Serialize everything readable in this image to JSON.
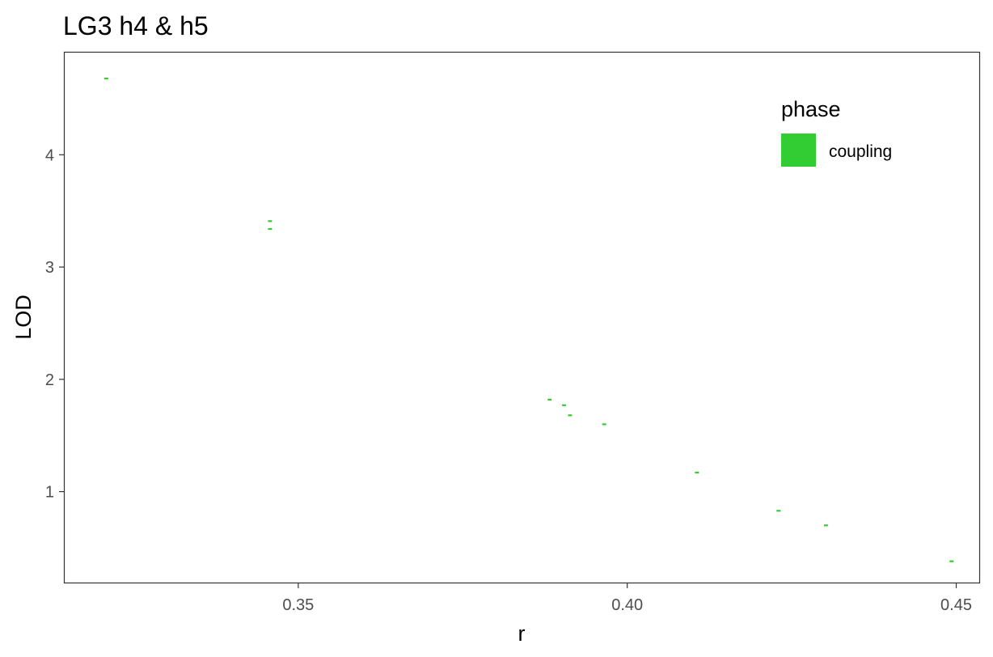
{
  "chart_data": {
    "type": "scatter",
    "title": "LG3 h4 & h5",
    "xlabel": "r",
    "ylabel": "LOD",
    "xlim": [
      0.3145,
      0.4535
    ],
    "ylim": [
      0.19,
      4.91
    ],
    "x_ticks": [
      {
        "value": 0.35,
        "label": "0.35"
      },
      {
        "value": 0.4,
        "label": "0.40"
      },
      {
        "value": 0.45,
        "label": "0.45"
      }
    ],
    "y_ticks": [
      {
        "value": 1,
        "label": "1"
      },
      {
        "value": 2,
        "label": "2"
      },
      {
        "value": 3,
        "label": "3"
      },
      {
        "value": 4,
        "label": "4"
      }
    ],
    "grid": false,
    "legend": {
      "title": "phase",
      "position": "top-right",
      "entries": [
        {
          "label": "coupling",
          "color": "#32cd32"
        }
      ]
    },
    "series": [
      {
        "name": "coupling",
        "color": "#32cd32",
        "points": [
          {
            "x": 0.3208,
            "y": 4.68
          },
          {
            "x": 0.3457,
            "y": 3.41
          },
          {
            "x": 0.3457,
            "y": 3.34
          },
          {
            "x": 0.3882,
            "y": 1.82
          },
          {
            "x": 0.3904,
            "y": 1.77
          },
          {
            "x": 0.3913,
            "y": 1.68
          },
          {
            "x": 0.3965,
            "y": 1.6
          },
          {
            "x": 0.4106,
            "y": 1.17
          },
          {
            "x": 0.423,
            "y": 0.83
          },
          {
            "x": 0.4302,
            "y": 0.7
          },
          {
            "x": 0.4493,
            "y": 0.38
          }
        ]
      }
    ]
  }
}
